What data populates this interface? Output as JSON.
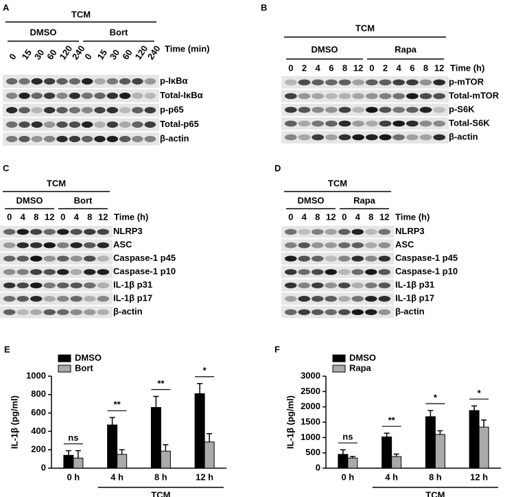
{
  "blots": [
    {
      "label": "A",
      "treatment": "TCM",
      "groups": [
        "DMSO",
        "Bort"
      ],
      "lanes": [
        "0",
        "15",
        "30",
        "60",
        "120",
        "240",
        "0",
        "15",
        "30",
        "60",
        "120",
        "240"
      ],
      "lane_title": "Time (min)",
      "rows": [
        "p-IκBα",
        "Total-IκBα",
        "p-p65",
        "Total-p65",
        "β-actin"
      ]
    },
    {
      "label": "B",
      "treatment": "TCM",
      "groups": [
        "DMSO",
        "Rapa"
      ],
      "lanes": [
        "0",
        "2",
        "4",
        "6",
        "8",
        "12",
        "0",
        "2",
        "4",
        "6",
        "8",
        "12"
      ],
      "lane_title": "Time (h)",
      "rows": [
        "p-mTOR",
        "Total-mTOR",
        "p-S6K",
        "Total-S6K",
        "β-actin"
      ]
    },
    {
      "label": "C",
      "treatment": "TCM",
      "groups": [
        "DMSO",
        "Bort"
      ],
      "lanes": [
        "0",
        "4",
        "8",
        "12",
        "0",
        "4",
        "8",
        "12"
      ],
      "lane_title": "Time (h)",
      "rows": [
        "NLRP3",
        "ASC",
        "Caspase-1 p45",
        "Caspase-1 p10",
        "IL-1β p31",
        "IL-1β p17",
        "β-actin"
      ]
    },
    {
      "label": "D",
      "treatment": "TCM",
      "groups": [
        "DMSO",
        "Rapa"
      ],
      "lanes": [
        "0",
        "4",
        "8",
        "12",
        "0",
        "4",
        "8",
        "12"
      ],
      "lane_title": "Time (h)",
      "rows": [
        "NLRP3",
        "ASC",
        "Caspase-1 p45",
        "Caspase-1 p10",
        "IL-1β p31",
        "IL-1β p17",
        "β-actin"
      ]
    }
  ],
  "chart_data": [
    {
      "type": "bar",
      "panel_label": "E",
      "ylabel": "IL-1β (pg/ml)",
      "categories": [
        "0 h",
        "4 h",
        "8 h",
        "12 h"
      ],
      "x_group_label": "TCM",
      "series": [
        {
          "name": "DMSO",
          "color": "#000000",
          "values": [
            140,
            470,
            660,
            810
          ],
          "errors": [
            50,
            80,
            120,
            110
          ]
        },
        {
          "name": "Bort",
          "color": "#aaaaaa",
          "values": [
            110,
            150,
            185,
            285
          ],
          "errors": [
            80,
            50,
            70,
            90
          ]
        }
      ],
      "significance": [
        "ns",
        "**",
        "**",
        "*"
      ],
      "ylim": [
        0,
        1000
      ],
      "yticks": [
        0,
        200,
        400,
        600,
        800,
        1000
      ],
      "legend": "upper left"
    },
    {
      "type": "bar",
      "panel_label": "F",
      "ylabel": "IL-1β (pg/ml)",
      "categories": [
        "0 h",
        "4 h",
        "8 h",
        "12 h"
      ],
      "x_group_label": "TCM",
      "series": [
        {
          "name": "DMSO",
          "color": "#000000",
          "values": [
            450,
            1020,
            1680,
            1880
          ],
          "errors": [
            150,
            120,
            200,
            150
          ]
        },
        {
          "name": "Rapa",
          "color": "#aaaaaa",
          "values": [
            330,
            380,
            1100,
            1340
          ],
          "errors": [
            50,
            80,
            120,
            230
          ]
        }
      ],
      "significance": [
        "ns",
        "**",
        "*",
        "*"
      ],
      "ylim": [
        0,
        3000
      ],
      "yticks": [
        0,
        500,
        1000,
        1500,
        2000,
        2500,
        3000
      ],
      "legend": "upper left"
    }
  ]
}
